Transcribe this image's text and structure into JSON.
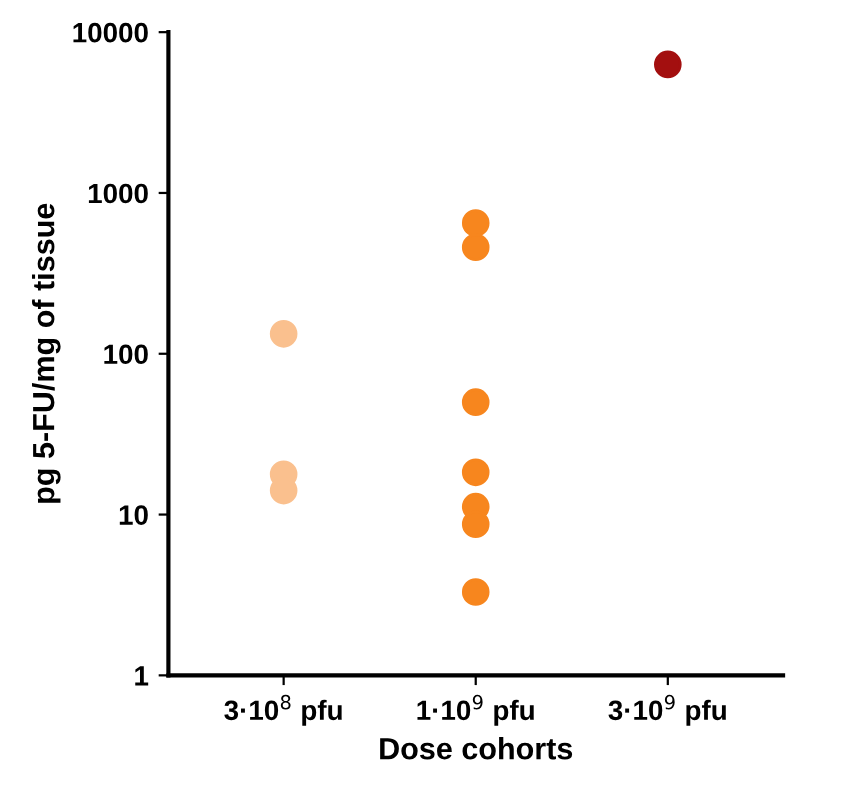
{
  "chart_data": {
    "type": "scatter",
    "xlabel": "Dose cohorts",
    "ylabel": "pg 5-FU/mg of tissue",
    "categories": [
      "3·10$^{8}$ pfu",
      "1·10$^{9}$ pfu",
      "3·10$^{9}$ pfu"
    ],
    "series": [
      {
        "color": "#fac08e",
        "x": [
          "3·10$^{8}$ pfu",
          "3·10$^{8}$ pfu",
          "3·10$^{8}$ pfu"
        ],
        "values": [
          133,
          17.8,
          14.1
        ]
      },
      {
        "color": "#f7861e",
        "x": [
          "1·10$^{9}$ pfu",
          "1·10$^{9}$ pfu",
          "1·10$^{9}$ pfu",
          "1·10$^{9}$ pfu",
          "1·10$^{9}$ pfu",
          "1·10$^{9}$ pfu",
          "1·10$^{9}$ pfu"
        ],
        "values": [
          460,
          650,
          50,
          18.3,
          11.2,
          8.7,
          3.3
        ]
      },
      {
        "color": "#a30f0f",
        "x": [
          "3·10$^{9}$ pfu"
        ],
        "values": [
          6300
        ]
      }
    ],
    "log": "y",
    "ylim": [
      1,
      10000
    ],
    "yticks": [
      1,
      10,
      100,
      1000,
      10000
    ],
    "grid": false,
    "legend": false,
    "marker": "circle"
  }
}
